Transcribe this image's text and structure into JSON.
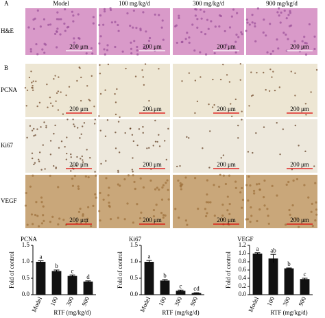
{
  "figure": {
    "panels": [
      "A",
      "B"
    ],
    "columns": [
      "Model",
      "100 mg/kg/d",
      "300 mg/kg/d",
      "900 mg/kg/d"
    ],
    "rows": [
      "H&E",
      "PCNA",
      "Ki67",
      "VEGF"
    ],
    "scale_bar": "200 μm"
  },
  "chart_data": [
    {
      "type": "bar",
      "title": "PCNA",
      "y_label": "Fold of control",
      "x_label": "RTF (mg/kg/d)",
      "categories": [
        "Model",
        "100",
        "300",
        "900"
      ],
      "values": [
        1.0,
        0.72,
        0.57,
        0.4
      ],
      "errors": [
        0.03,
        0.03,
        0.03,
        0.02
      ],
      "letters": [
        "a",
        "b",
        "c",
        "d"
      ],
      "color": "#111111",
      "ylim": [
        0,
        1.5
      ],
      "yticks": [
        {
          "value": 0,
          "label": "0.0"
        },
        {
          "value": 0.5,
          "label": "0.5"
        },
        {
          "value": 1,
          "label": "1.0"
        },
        {
          "value": 1.5,
          "label": "1.5"
        }
      ]
    },
    {
      "type": "bar",
      "title": "Ki67",
      "y_label": "Fold of control",
      "x_label": "RTF (mg/kg/d)",
      "categories": [
        "Model",
        "100",
        "300",
        "900"
      ],
      "values": [
        1.0,
        0.43,
        0.12,
        0.05
      ],
      "errors": [
        0.04,
        0.03,
        0.02,
        0.01
      ],
      "letters": [
        "a",
        "b",
        "c",
        "cd"
      ],
      "color": "#111111",
      "ylim": [
        0,
        1.5
      ],
      "yticks": [
        {
          "value": 0,
          "label": "0.0"
        },
        {
          "value": 0.5,
          "label": "0.5"
        },
        {
          "value": 1,
          "label": "1.0"
        },
        {
          "value": 1.5,
          "label": "1.5"
        }
      ]
    },
    {
      "type": "bar",
      "title": "VEGF",
      "y_label": "Fold of control",
      "x_label": "RTF (mg/kg/d)",
      "categories": [
        "Model",
        "100",
        "300",
        "900"
      ],
      "values": [
        1.0,
        0.88,
        0.64,
        0.38
      ],
      "errors": [
        0.02,
        0.1,
        0.01,
        0.02
      ],
      "letters": [
        "a",
        "ab",
        "b",
        "c"
      ],
      "color": "#111111",
      "ylim": [
        0,
        1.2
      ],
      "yticks": [
        {
          "value": 0,
          "label": "0.0"
        },
        {
          "value": 0.2,
          "label": "0.2"
        },
        {
          "value": 0.4,
          "label": "0.4"
        },
        {
          "value": 0.6,
          "label": "0.6"
        },
        {
          "value": 0.8,
          "label": "0.8"
        },
        {
          "value": 1,
          "label": "1.0"
        },
        {
          "value": 1.2,
          "label": "1.2"
        }
      ]
    }
  ]
}
